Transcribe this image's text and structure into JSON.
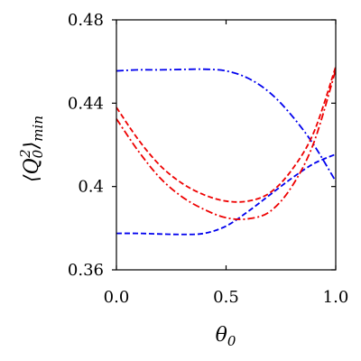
{
  "chart_data": {
    "type": "line",
    "title": "",
    "xlabel": "θ0",
    "ylabel": "⟨Q0²⟩min",
    "xlim": [
      0.0,
      1.0
    ],
    "ylim": [
      0.36,
      0.48
    ],
    "xticks": [
      {
        "value": 0.0,
        "label": "0.0"
      },
      {
        "value": 0.5,
        "label": "0.5"
      },
      {
        "value": 1.0,
        "label": "1.0"
      }
    ],
    "yticks": [
      {
        "value": 0.36,
        "label": "0.36"
      },
      {
        "value": 0.4,
        "label": "0.4"
      },
      {
        "value": 0.44,
        "label": "0.44"
      },
      {
        "value": 0.48,
        "label": "0.48"
      }
    ],
    "grid": false,
    "legend": "none",
    "series": [
      {
        "color": "#0000ee",
        "dash": "dashdot",
        "x": [
          0.0,
          0.1,
          0.2,
          0.3,
          0.4,
          0.5,
          0.6,
          0.7,
          0.8,
          0.9,
          1.0
        ],
        "y": [
          0.4555,
          0.456,
          0.456,
          0.4562,
          0.4563,
          0.4555,
          0.452,
          0.445,
          0.434,
          0.42,
          0.4025
        ]
      },
      {
        "color": "#0000ee",
        "dash": "dash",
        "x": [
          0.0,
          0.1,
          0.2,
          0.3,
          0.4,
          0.5,
          0.6,
          0.7,
          0.8,
          0.9,
          1.0
        ],
        "y": [
          0.3775,
          0.3775,
          0.3772,
          0.377,
          0.3775,
          0.381,
          0.388,
          0.396,
          0.404,
          0.411,
          0.4155
        ]
      },
      {
        "color": "#ee0000",
        "dash": "dash",
        "x": [
          0.0,
          0.1,
          0.2,
          0.3,
          0.4,
          0.5,
          0.6,
          0.7,
          0.8,
          0.9,
          1.0
        ],
        "y": [
          0.438,
          0.4225,
          0.41,
          0.4015,
          0.396,
          0.393,
          0.393,
          0.397,
          0.408,
          0.426,
          0.4575
        ]
      },
      {
        "color": "#ee0000",
        "dash": "dashdot",
        "x": [
          0.0,
          0.1,
          0.2,
          0.3,
          0.4,
          0.5,
          0.6,
          0.7,
          0.8,
          0.9,
          1.0
        ],
        "y": [
          0.4325,
          0.417,
          0.404,
          0.395,
          0.389,
          0.385,
          0.3845,
          0.388,
          0.4,
          0.421,
          0.456
        ]
      }
    ]
  }
}
